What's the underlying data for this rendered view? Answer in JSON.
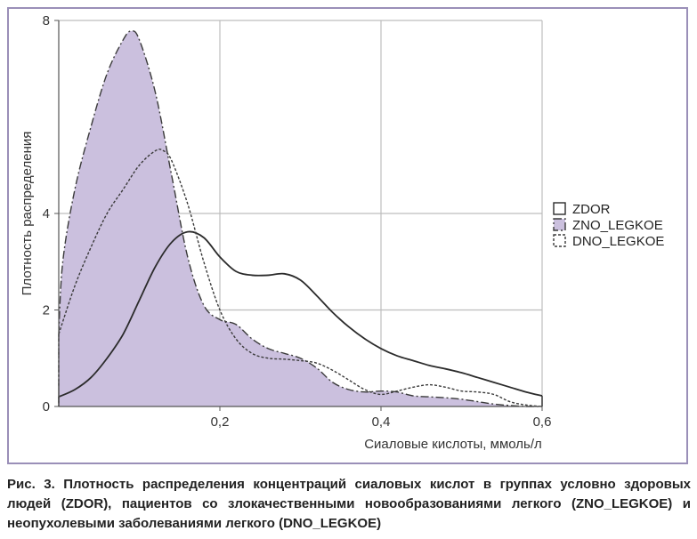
{
  "caption": "Рис. 3. Плотность распределения концентраций сиаловых кислот в группах условно здоровых людей (ZDOR), пациентов со злокачественными новообразованиями легкого (ZNO_LEGKOE) и неопухолевыми заболеваниями легкого (DNO_LEGKOE)",
  "chart_data": {
    "type": "area",
    "xlabel": "Сиаловые кислоты, ммоль/л",
    "ylabel": "Плотность распределения",
    "xlim": [
      0.0,
      0.6
    ],
    "ylim": [
      0,
      8
    ],
    "x_ticks": [
      {
        "value": 0.2,
        "label": "0,2"
      },
      {
        "value": 0.4,
        "label": "0,4"
      },
      {
        "value": 0.6,
        "label": "0,6"
      }
    ],
    "y_ticks": [
      {
        "value": 0,
        "label": "0"
      },
      {
        "value": 2,
        "label": "2"
      },
      {
        "value": 4,
        "label": "4"
      },
      {
        "value": 8,
        "label": "8"
      }
    ],
    "grid": true,
    "legend_position": "right",
    "series": [
      {
        "name": "ZDOR",
        "style": "solid",
        "fill": "none",
        "color": "#2b2b2b",
        "x": [
          0.0,
          0.02,
          0.04,
          0.06,
          0.08,
          0.1,
          0.12,
          0.14,
          0.16,
          0.18,
          0.2,
          0.22,
          0.24,
          0.26,
          0.28,
          0.3,
          0.32,
          0.34,
          0.36,
          0.38,
          0.4,
          0.42,
          0.44,
          0.46,
          0.48,
          0.5,
          0.52,
          0.54,
          0.56,
          0.58,
          0.6
        ],
        "y": [
          0.2,
          0.35,
          0.6,
          1.0,
          1.5,
          2.2,
          2.9,
          3.4,
          3.62,
          3.5,
          3.1,
          2.8,
          2.72,
          2.72,
          2.75,
          2.62,
          2.3,
          1.95,
          1.65,
          1.4,
          1.2,
          1.05,
          0.95,
          0.85,
          0.78,
          0.7,
          0.6,
          0.5,
          0.4,
          0.3,
          0.22
        ]
      },
      {
        "name": "ZNO_LEGKOE",
        "style": "dash-dot",
        "fill": "#cbc0de",
        "color": "#3a3a3a",
        "x": [
          0.0,
          0.005,
          0.02,
          0.04,
          0.06,
          0.08,
          0.09,
          0.1,
          0.12,
          0.14,
          0.16,
          0.18,
          0.2,
          0.22,
          0.24,
          0.26,
          0.28,
          0.3,
          0.32,
          0.34,
          0.36,
          0.38,
          0.4,
          0.42,
          0.44,
          0.46,
          0.48,
          0.5,
          0.52,
          0.54,
          0.56,
          0.58,
          0.6
        ],
        "y": [
          1.5,
          3.0,
          4.5,
          5.8,
          6.9,
          7.6,
          7.78,
          7.6,
          6.5,
          4.8,
          3.1,
          2.1,
          1.8,
          1.7,
          1.4,
          1.2,
          1.1,
          1.0,
          0.8,
          0.5,
          0.35,
          0.3,
          0.32,
          0.3,
          0.22,
          0.2,
          0.18,
          0.15,
          0.1,
          0.05,
          0.02,
          0.0,
          0.0
        ]
      },
      {
        "name": "DNO_LEGKOE",
        "style": "dotted",
        "fill": "none",
        "color": "#3a3a3a",
        "x": [
          0.0,
          0.02,
          0.04,
          0.06,
          0.08,
          0.1,
          0.12,
          0.13,
          0.14,
          0.16,
          0.18,
          0.2,
          0.22,
          0.24,
          0.26,
          0.28,
          0.3,
          0.32,
          0.34,
          0.36,
          0.38,
          0.4,
          0.42,
          0.44,
          0.46,
          0.48,
          0.5,
          0.52,
          0.54,
          0.56,
          0.58,
          0.6
        ],
        "y": [
          1.5,
          2.5,
          3.3,
          4.0,
          4.5,
          5.0,
          5.3,
          5.3,
          5.1,
          4.2,
          3.0,
          2.0,
          1.4,
          1.1,
          1.0,
          0.98,
          0.95,
          0.9,
          0.75,
          0.55,
          0.35,
          0.25,
          0.32,
          0.4,
          0.45,
          0.4,
          0.32,
          0.3,
          0.25,
          0.1,
          0.03,
          0.0
        ]
      }
    ]
  }
}
